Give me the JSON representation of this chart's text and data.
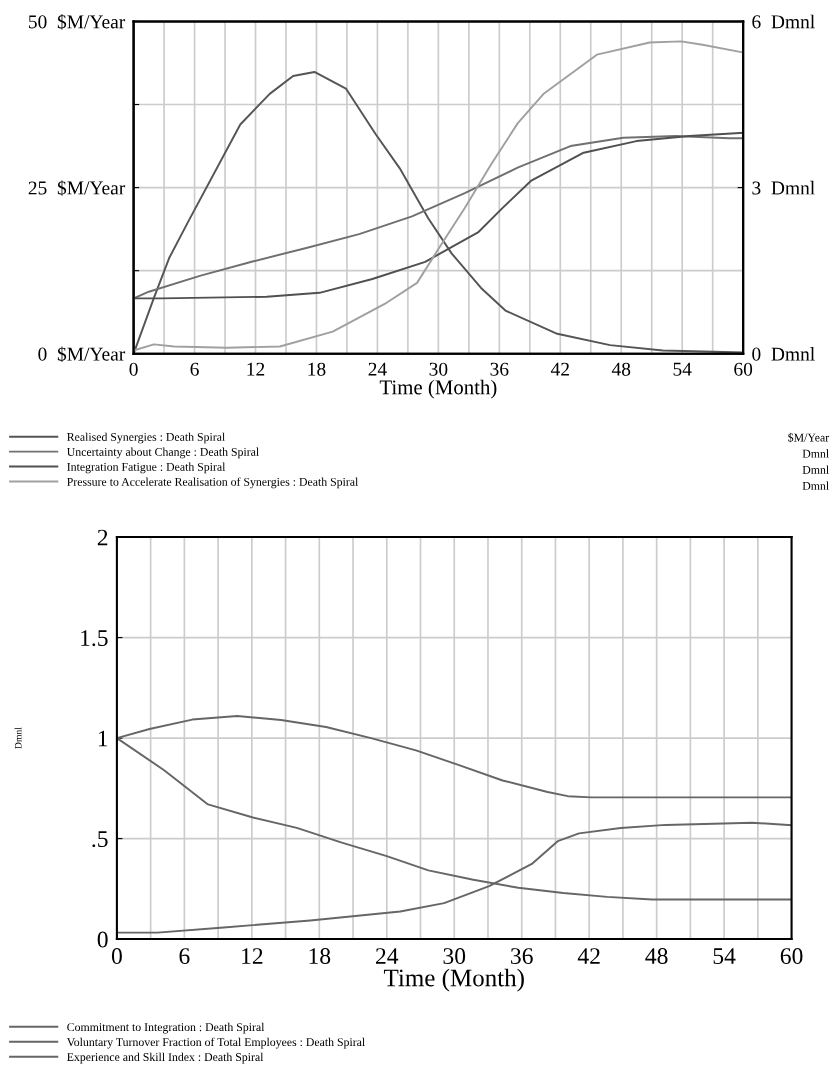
{
  "chart_data": [
    {
      "type": "line",
      "xlabel": "Time (Month)",
      "xlim": [
        0,
        60
      ],
      "xticks": [
        0,
        {
          "value": 3,
          "label": null
        },
        6,
        {
          "value": 9,
          "label": null
        },
        12,
        {
          "value": 15,
          "label": null
        },
        18,
        {
          "value": 21,
          "label": null
        },
        24,
        {
          "value": 27,
          "label": null
        },
        30,
        {
          "value": 33,
          "label": null
        },
        36,
        {
          "value": 39,
          "label": null
        },
        42,
        {
          "value": 45,
          "label": null
        },
        48,
        {
          "value": 51,
          "label": null
        },
        54,
        {
          "value": 57,
          "label": null
        },
        60
      ],
      "ylim": [
        0,
        50
      ],
      "yticks": [
        {
          "value": 0,
          "label": "0  $M/Year"
        },
        {
          "value": 12.5,
          "label": null
        },
        {
          "value": 25,
          "label": "25  $M/Year"
        },
        {
          "value": 37.5,
          "label": null
        },
        {
          "value": 50,
          "label": "50  $M/Year"
        }
      ],
      "y2lim": [
        0,
        6
      ],
      "y2ticks": [
        {
          "value": 0,
          "label": "0  Dmnl"
        },
        {
          "value": 3,
          "label": "3  Dmnl"
        },
        {
          "value": 6,
          "label": "6  Dmnl"
        }
      ],
      "grid": true,
      "legend": "bottom",
      "line_style": "solid",
      "annotations": [
        "$M/Year",
        "Dmnl",
        "Dmnl",
        "Dmnl"
      ],
      "series": [
        {
          "name": "Realised Synergies : Death Spiral",
          "color": "#555555",
          "x": [
            0,
            2,
            3.5,
            5.35,
            10.5,
            13.4,
            15.7,
            17.8,
            20.9,
            23.8,
            26.2,
            29,
            31.3,
            34.2,
            36.6,
            41.7,
            46.9,
            52.1,
            60
          ],
          "values": [
            0,
            8.4,
            14.4,
            19.8,
            34.5,
            39.1,
            41.8,
            42.4,
            39.9,
            33.1,
            27.9,
            20.4,
            15.1,
            9.9,
            6.5,
            3.0,
            1.3,
            0.5,
            0.2
          ]
        },
        {
          "name": "Uncertainty about Change : Death Spiral",
          "color": "#707070",
          "axis": "y2",
          "x": [
            0,
            1.5,
            6.6,
            11.8,
            17,
            22.2,
            27.4,
            32.6,
            37.8,
            43,
            48.2,
            53.4,
            58.6,
            60
          ],
          "values": [
            1.0,
            1.12,
            1.41,
            1.67,
            1.91,
            2.16,
            2.48,
            2.9,
            3.36,
            3.75,
            3.9,
            3.93,
            3.89,
            3.89
          ]
        },
        {
          "name": "Integration Fatigue : Death Spiral",
          "color": "#505050",
          "axis": "y2",
          "x": [
            0,
            2.75,
            13.1,
            18.3,
            23.5,
            28.7,
            33.9,
            36.3,
            39.1,
            44.3,
            49.5,
            54.7,
            60
          ],
          "values": [
            1.0,
            1.0,
            1.03,
            1.1,
            1.35,
            1.66,
            2.19,
            2.63,
            3.12,
            3.63,
            3.84,
            3.93,
            3.99
          ]
        },
        {
          "name": "Pressure to Accelerate Realisation of Synergies : Death Spiral",
          "color": "#a0a0a0",
          "axis": "y2",
          "x": [
            0,
            2,
            4,
            9.2,
            14.4,
            19.6,
            24.9,
            27.9,
            30,
            32.6,
            35.2,
            37.8,
            40.4,
            45.6,
            50.8,
            53.9,
            56,
            60
          ],
          "values": [
            0.06,
            0.17,
            0.13,
            0.11,
            0.13,
            0.4,
            0.92,
            1.28,
            1.89,
            2.63,
            3.42,
            4.16,
            4.7,
            5.4,
            5.62,
            5.64,
            5.58,
            5.44
          ]
        }
      ]
    },
    {
      "type": "line",
      "xlabel": "Time (Month)",
      "ylabel": "Dmnl",
      "xlim": [
        0,
        60
      ],
      "xticks": [
        0,
        {
          "value": 3,
          "label": null
        },
        6,
        {
          "value": 9,
          "label": null
        },
        12,
        {
          "value": 15,
          "label": null
        },
        18,
        {
          "value": 21,
          "label": null
        },
        24,
        {
          "value": 27,
          "label": null
        },
        30,
        {
          "value": 33,
          "label": null
        },
        36,
        {
          "value": 39,
          "label": null
        },
        42,
        {
          "value": 45,
          "label": null
        },
        48,
        {
          "value": 51,
          "label": null
        },
        54,
        {
          "value": 57,
          "label": null
        },
        60
      ],
      "ylim": [
        0,
        2
      ],
      "yticks": [
        0,
        {
          "value": 0.5,
          "label": ".5"
        },
        1,
        1.5,
        2
      ],
      "grid": true,
      "legend": "bottom",
      "line_style": "solid",
      "series": [
        {
          "name": "Commitment to Integration : Death Spiral",
          "color": "#666666",
          "x": [
            0,
            4.2,
            8.1,
            12.1,
            16,
            20,
            24,
            27.7,
            31.7,
            35.7,
            39.7,
            43.6,
            47.6,
            60
          ],
          "values": [
            1.0,
            0.84,
            0.67,
            0.605,
            0.553,
            0.48,
            0.413,
            0.342,
            0.295,
            0.255,
            0.229,
            0.21,
            0.197,
            0.197
          ]
        },
        {
          "name": "Voluntary Turnover Fraction of Total Employees : Death Spiral",
          "color": "#666666",
          "x": [
            0,
            3.6,
            9.5,
            17.2,
            25.2,
            29.1,
            33.1,
            36.9,
            39.2,
            41.1,
            44.8,
            48.8,
            56.5,
            60
          ],
          "values": [
            0.032,
            0.032,
            0.058,
            0.092,
            0.137,
            0.179,
            0.263,
            0.374,
            0.487,
            0.526,
            0.553,
            0.568,
            0.579,
            0.566
          ]
        },
        {
          "name": "Experience and Skill Index : Death Spiral",
          "color": "#666666",
          "x": [
            0,
            2.9,
            6.7,
            10.7,
            14.6,
            18.6,
            22.6,
            26.6,
            30.3,
            34.3,
            38.3,
            40.1,
            42.2,
            60
          ],
          "values": [
            1.0,
            1.045,
            1.092,
            1.11,
            1.09,
            1.055,
            1.0,
            0.939,
            0.868,
            0.789,
            0.732,
            0.711,
            0.705,
            0.705
          ]
        }
      ]
    }
  ]
}
